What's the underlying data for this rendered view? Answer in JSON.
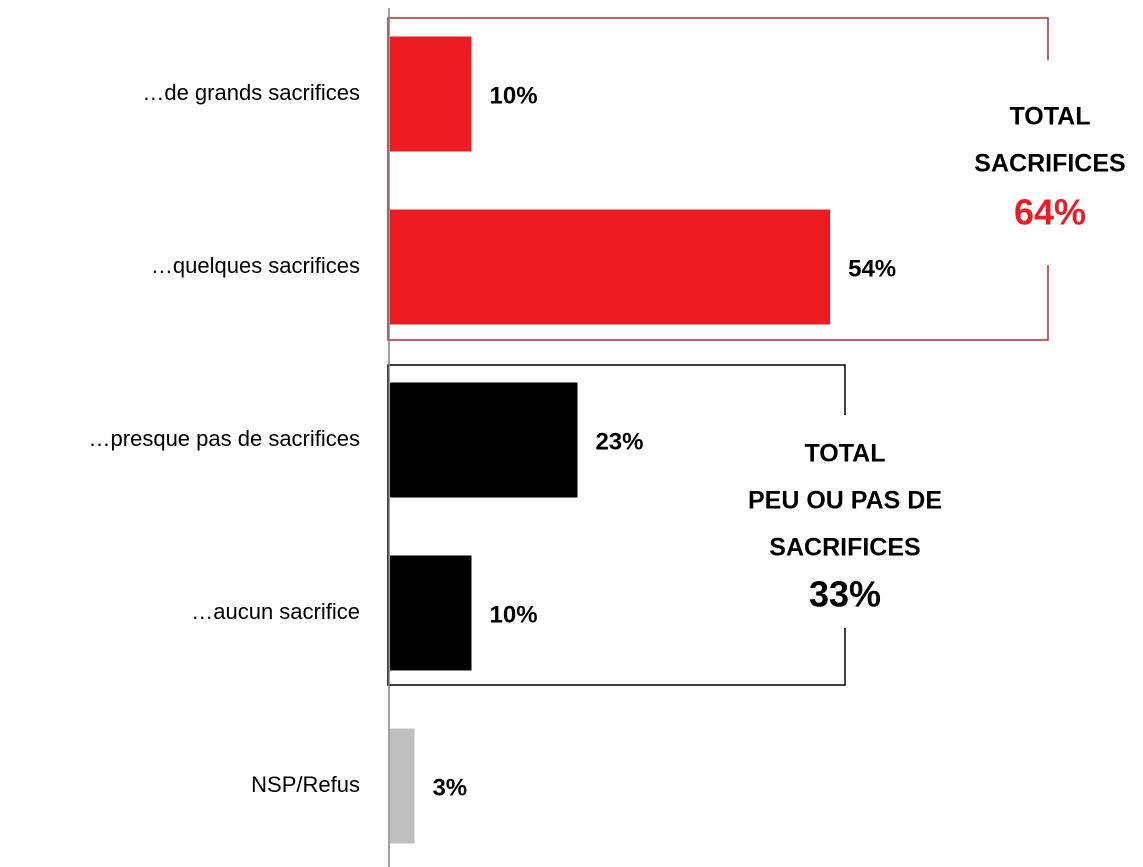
{
  "chart_data": {
    "type": "hbar",
    "categories": [
      "…de grands sacrifices",
      "…quelques sacrifices",
      "…presque pas de sacrifices",
      "…aucun sacrifice",
      "NSP/Refus"
    ],
    "values": [
      10,
      54,
      23,
      10,
      3
    ],
    "value_labels": [
      "10%",
      "54%",
      "23%",
      "10%",
      "3%"
    ],
    "colors": [
      "#ed1c24",
      "#ed1c24",
      "#000000",
      "#000000",
      "#bfbfbf"
    ],
    "xlim": [
      0,
      90
    ],
    "annotations": [
      {
        "lines": [
          "TOTAL",
          "SACRIFICES"
        ],
        "value": 64,
        "value_label": "64%",
        "color": "#ed1c24"
      },
      {
        "lines": [
          "TOTAL",
          "PEU OU PAS DE",
          "SACRIFICES"
        ],
        "value": 33,
        "value_label": "33%",
        "color": "#000000"
      }
    ]
  }
}
